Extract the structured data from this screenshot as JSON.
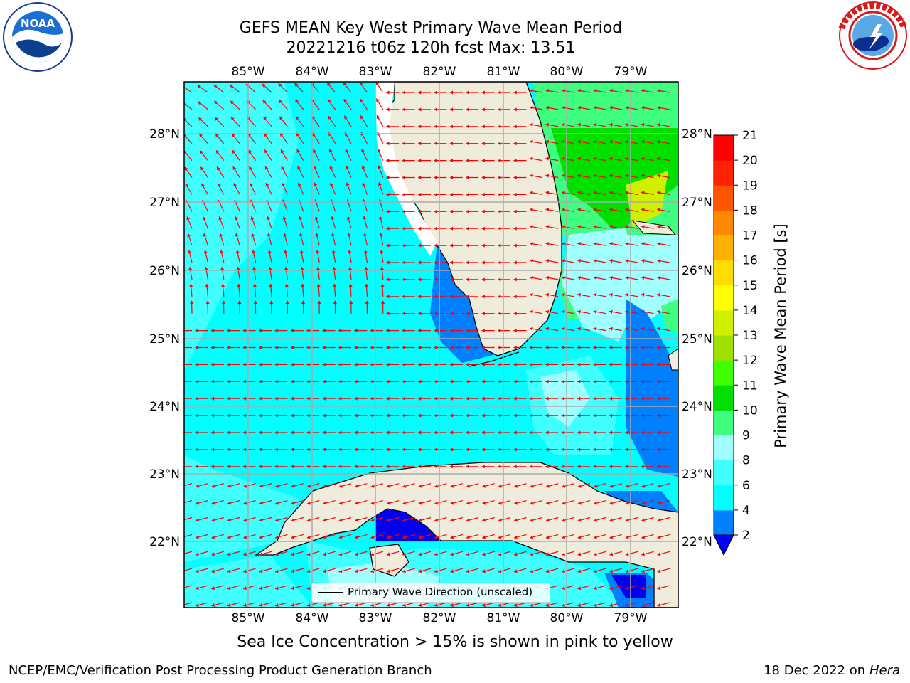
{
  "header": {
    "title_line1": "GEFS MEAN Key West Primary Wave Mean Period",
    "title_line2": "20221216 t06z 120h fcst   Max: 13.51"
  },
  "logos": {
    "noaa": {
      "text": "NOAA",
      "ring_text": "NATIONAL OCEANIC AND ATMOSPHERIC ADMINISTRATION · U.S. DEPARTMENT OF COMMERCE"
    },
    "nws": {
      "ring_text": "NATIONAL WEATHER SERVICE"
    }
  },
  "map": {
    "lon_labels": [
      "85°W",
      "84°W",
      "83°W",
      "82°W",
      "81°W",
      "80°W",
      "79°W"
    ],
    "lat_labels": [
      "28°N",
      "27°N",
      "26°N",
      "25°N",
      "24°N",
      "23°N",
      "22°N"
    ],
    "legend_label": "Primary Wave Direction (unscaled)",
    "colors": {
      "land": "#efecdc",
      "ocean": "#00ffff",
      "grid": "#aaaaaa",
      "arrow": "#ff0000"
    }
  },
  "colorbar": {
    "title": "Primary Wave Mean Period [s]",
    "ticks": [
      "2",
      "4",
      "6",
      "8",
      "9",
      "10",
      "11",
      "12",
      "13",
      "14",
      "15",
      "16",
      "17",
      "18",
      "19",
      "20",
      "21"
    ],
    "colors": [
      "#0000ff",
      "#0080ff",
      "#00ffff",
      "#40ffff",
      "#a0ffff",
      "#40ff80",
      "#00e000",
      "#40ff00",
      "#a0e000",
      "#d0f000",
      "#ffff00",
      "#ffdd00",
      "#ffb000",
      "#ff8800",
      "#ff5500",
      "#ff2200",
      "#ff0000"
    ]
  },
  "notes": {
    "ice": "Sea Ice Concentration > 15% is shown in pink to yellow",
    "footer_left": "NCEP/EMC/Verification Post Processing Product Generation Branch",
    "footer_date": "18 Dec 2022 on",
    "footer_machine": "Hera"
  }
}
